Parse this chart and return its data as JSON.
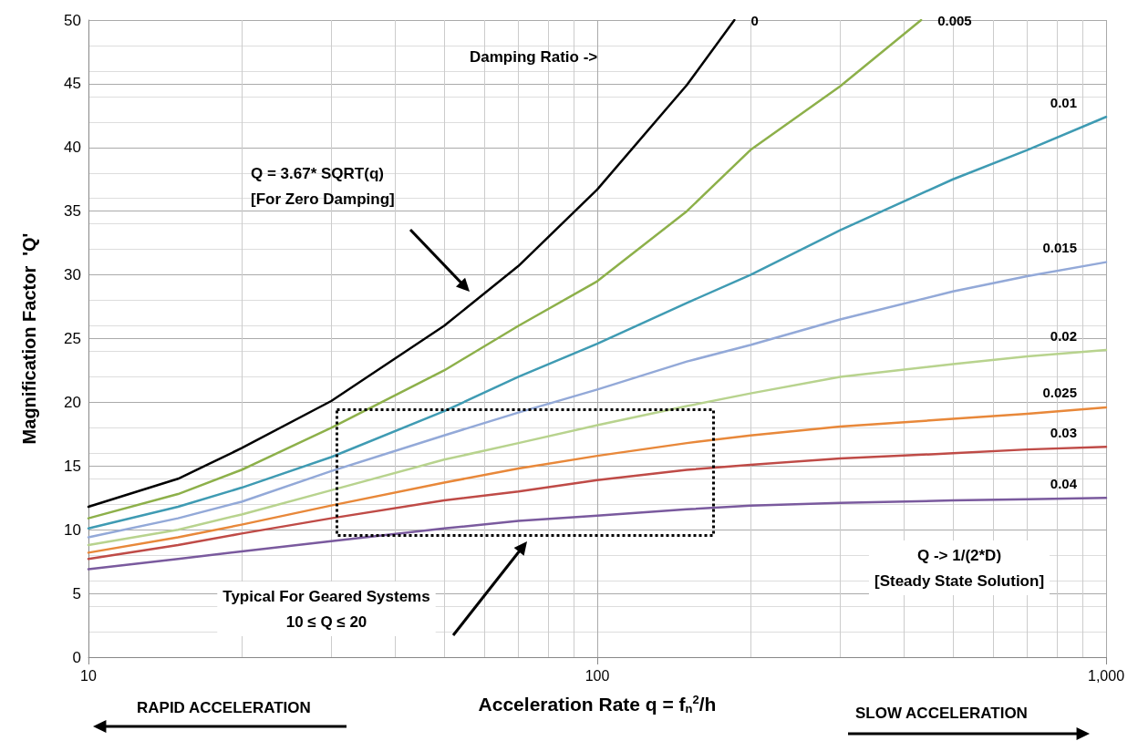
{
  "chart_data": {
    "type": "line",
    "xlabel": "Acceleration Rate q = f$_{n}$$^{2}$/h",
    "ylabel": "Magnification Factor  'Q'",
    "log": "x",
    "grid": true,
    "legend": false,
    "marker": "none",
    "line_style": "solid",
    "xlim": [
      10,
      1000
    ],
    "xticks": [
      10,
      100,
      {
        "value": 1000,
        "label": "1,000"
      }
    ],
    "ylim": [
      0,
      50
    ],
    "yticks": [
      0,
      5,
      10,
      15,
      20,
      25,
      30,
      35,
      40,
      45,
      50
    ],
    "x": [
      10,
      15,
      20,
      30,
      50,
      70,
      100,
      150,
      200,
      300,
      500,
      700,
      1000
    ],
    "series": [
      {
        "name": "0",
        "color": "#000000",
        "x": [
          10,
          15,
          20,
          30,
          50,
          70,
          100,
          150,
          186
        ],
        "values": [
          11.8,
          14,
          16.4,
          20.1,
          26,
          30.7,
          36.7,
          44.9,
          50
        ]
      },
      {
        "name": "0.005",
        "color": "#8db04a",
        "x": [
          10,
          15,
          20,
          30,
          50,
          70,
          100,
          150,
          200,
          300,
          433
        ],
        "values": [
          10.9,
          12.8,
          14.7,
          18,
          22.5,
          26,
          29.5,
          35,
          39.8,
          44.8,
          50
        ]
      },
      {
        "name": "0.01",
        "color": "#3f9bb3",
        "values": [
          10.1,
          11.8,
          13.3,
          15.7,
          19.3,
          22,
          24.6,
          27.8,
          30,
          33.5,
          37.5,
          39.8,
          42.4
        ]
      },
      {
        "name": "0.015",
        "color": "#93a9d8",
        "values": [
          9.4,
          10.9,
          12.2,
          14.6,
          17.4,
          19.2,
          21,
          23.2,
          24.5,
          26.5,
          28.7,
          29.9,
          31
        ]
      },
      {
        "name": "0.02",
        "color": "#b8d38e",
        "values": [
          8.8,
          10,
          11.2,
          13.1,
          15.5,
          16.8,
          18.2,
          19.7,
          20.7,
          22,
          23,
          23.6,
          24.1
        ]
      },
      {
        "name": "0.025",
        "color": "#e8883a",
        "values": [
          8.2,
          9.4,
          10.4,
          11.9,
          13.7,
          14.8,
          15.8,
          16.8,
          17.4,
          18.1,
          18.7,
          19.1,
          19.6
        ]
      },
      {
        "name": "0.03",
        "color": "#bf4b47",
        "values": [
          7.7,
          8.8,
          9.7,
          10.9,
          12.3,
          13,
          13.9,
          14.7,
          15.1,
          15.6,
          16,
          16.3,
          16.5
        ]
      },
      {
        "name": "0.04",
        "color": "#7a5a9e",
        "values": [
          6.9,
          7.7,
          8.3,
          9.1,
          10.1,
          10.7,
          11.1,
          11.6,
          11.9,
          12.1,
          12.3,
          12.4,
          12.5
        ]
      }
    ],
    "annotations": [
      "Damping Ratio ->",
      "Q = 3.67* SQRT(q)\n[For Zero Damping]",
      "Typical For Geared Systems\n10 ≤ Q ≤ 20",
      "Q -> 1/(2*D)\n[Steady State Solution]",
      "RAPID ACCELERATION",
      "SLOW ACCELERATION"
    ]
  }
}
